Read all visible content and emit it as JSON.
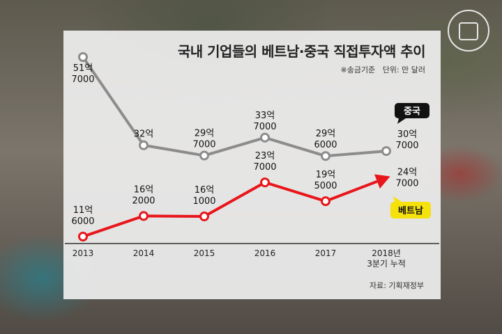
{
  "chart_data": {
    "type": "line",
    "title": "국내 기업들의 베트남·중국 직접투자액 추이",
    "subtitle_note": "※송금기준",
    "unit": "단위: 만 달러",
    "source": "자료: 기획재정부",
    "categories": [
      "2013",
      "2014",
      "2015",
      "2016",
      "2017",
      "2018년 3분기 누적"
    ],
    "ylim": [
      100000,
      550000
    ],
    "series": [
      {
        "name": "중국",
        "color": "#8c8c8c",
        "values": [
          517000,
          320000,
          297000,
          337000,
          296000,
          307000
        ],
        "labels": [
          [
            "51억",
            "7000"
          ],
          [
            "32억"
          ],
          [
            "29억",
            "7000"
          ],
          [
            "33억",
            "7000"
          ],
          [
            "29억",
            "6000"
          ],
          [
            "30억",
            "7000"
          ]
        ]
      },
      {
        "name": "베트남",
        "color": "#e8161b",
        "values": [
          116000,
          162000,
          161000,
          237000,
          195000,
          247000
        ],
        "labels": [
          [
            "11억",
            "6000"
          ],
          [
            "16억",
            "2000"
          ],
          [
            "16억",
            "1000"
          ],
          [
            "23억",
            "7000"
          ],
          [
            "19억",
            "5000"
          ],
          [
            "24억",
            "7000"
          ]
        ]
      }
    ],
    "grid": false,
    "legend": "inline-right"
  }
}
